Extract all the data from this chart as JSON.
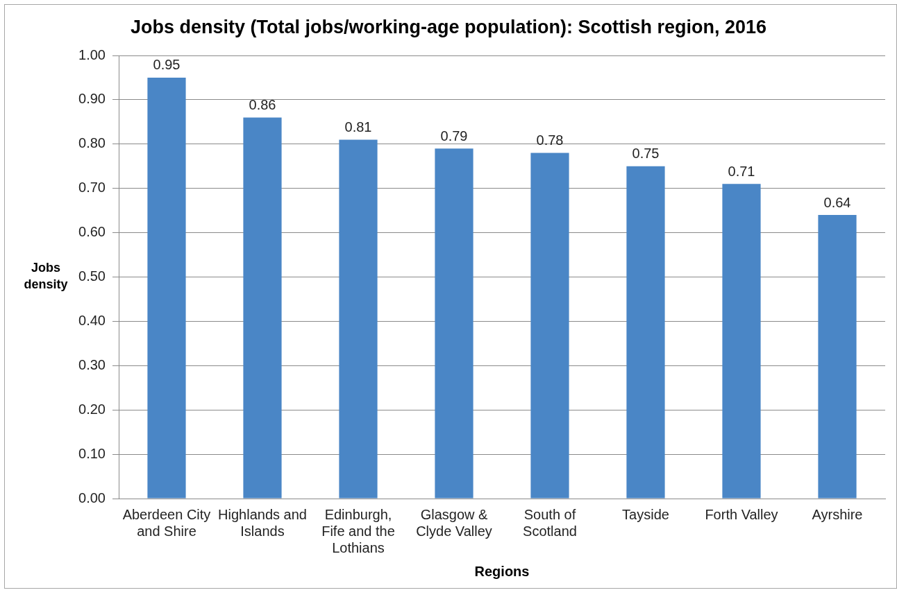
{
  "chart_data": {
    "type": "bar",
    "title": "Jobs density (Total jobs/working-age population): Scottish region, 2016",
    "xlabel": "Regions",
    "ylabel": "Jobs density",
    "categories": [
      "Aberdeen City and Shire",
      "Highlands and Islands",
      "Edinburgh, Fife and the Lothians",
      "Glasgow & Clyde Valley",
      "South of Scotland",
      "Tayside",
      "Forth Valley",
      "Ayrshire"
    ],
    "values": [
      0.95,
      0.86,
      0.81,
      0.79,
      0.78,
      0.75,
      0.71,
      0.64
    ],
    "color": "#4a86c6",
    "ylim": [
      0,
      1
    ],
    "yticks": [
      {
        "value": 0,
        "label": "0.00"
      },
      {
        "value": 0.1,
        "label": "0.10"
      },
      {
        "value": 0.2,
        "label": "0.20"
      },
      {
        "value": 0.3,
        "label": "0.30"
      },
      {
        "value": 0.4,
        "label": "0.40"
      },
      {
        "value": 0.5,
        "label": "0.50"
      },
      {
        "value": 0.6,
        "label": "0.60"
      },
      {
        "value": 0.7,
        "label": "0.70"
      },
      {
        "value": 0.8,
        "label": "0.80"
      },
      {
        "value": 0.9,
        "label": "0.90"
      },
      {
        "value": 1,
        "label": "1.00"
      }
    ],
    "grid": "y",
    "data_labels": true
  }
}
